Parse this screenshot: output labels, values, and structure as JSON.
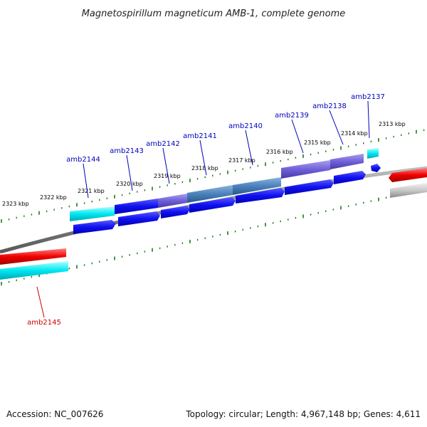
{
  "title": "Magnetospirillum magneticum AMB-1, complete genome",
  "footer": {
    "accession": "Accession: NC_007626",
    "summary": "Topology: circular; Length: 4,967,148 bp; Genes: 4,611"
  },
  "colors": {
    "backbone": "#777777",
    "tick": "#1a7a1a",
    "forward_label": "#0000bb",
    "reverse_label": "#cc0000"
  },
  "ticks": [
    {
      "label": "2313 kbp"
    },
    {
      "label": "2314 kbp"
    },
    {
      "label": "2315 kbp"
    },
    {
      "label": "2316 kbp"
    },
    {
      "label": "2317 kbp"
    },
    {
      "label": "2318 kbp"
    },
    {
      "label": "2319 kbp"
    },
    {
      "label": "2320 kbp"
    },
    {
      "label": "2321 kbp"
    },
    {
      "label": "2322 kbp"
    },
    {
      "label": "2323 kbp"
    }
  ],
  "genes": [
    {
      "name": "amb2137",
      "strand": "forward"
    },
    {
      "name": "amb2138",
      "strand": "forward"
    },
    {
      "name": "amb2139",
      "strand": "forward"
    },
    {
      "name": "amb2140",
      "strand": "forward"
    },
    {
      "name": "amb2141",
      "strand": "forward"
    },
    {
      "name": "amb2142",
      "strand": "forward"
    },
    {
      "name": "amb2143",
      "strand": "forward"
    },
    {
      "name": "amb2144",
      "strand": "forward"
    },
    {
      "name": "amb2145",
      "strand": "reverse"
    }
  ]
}
